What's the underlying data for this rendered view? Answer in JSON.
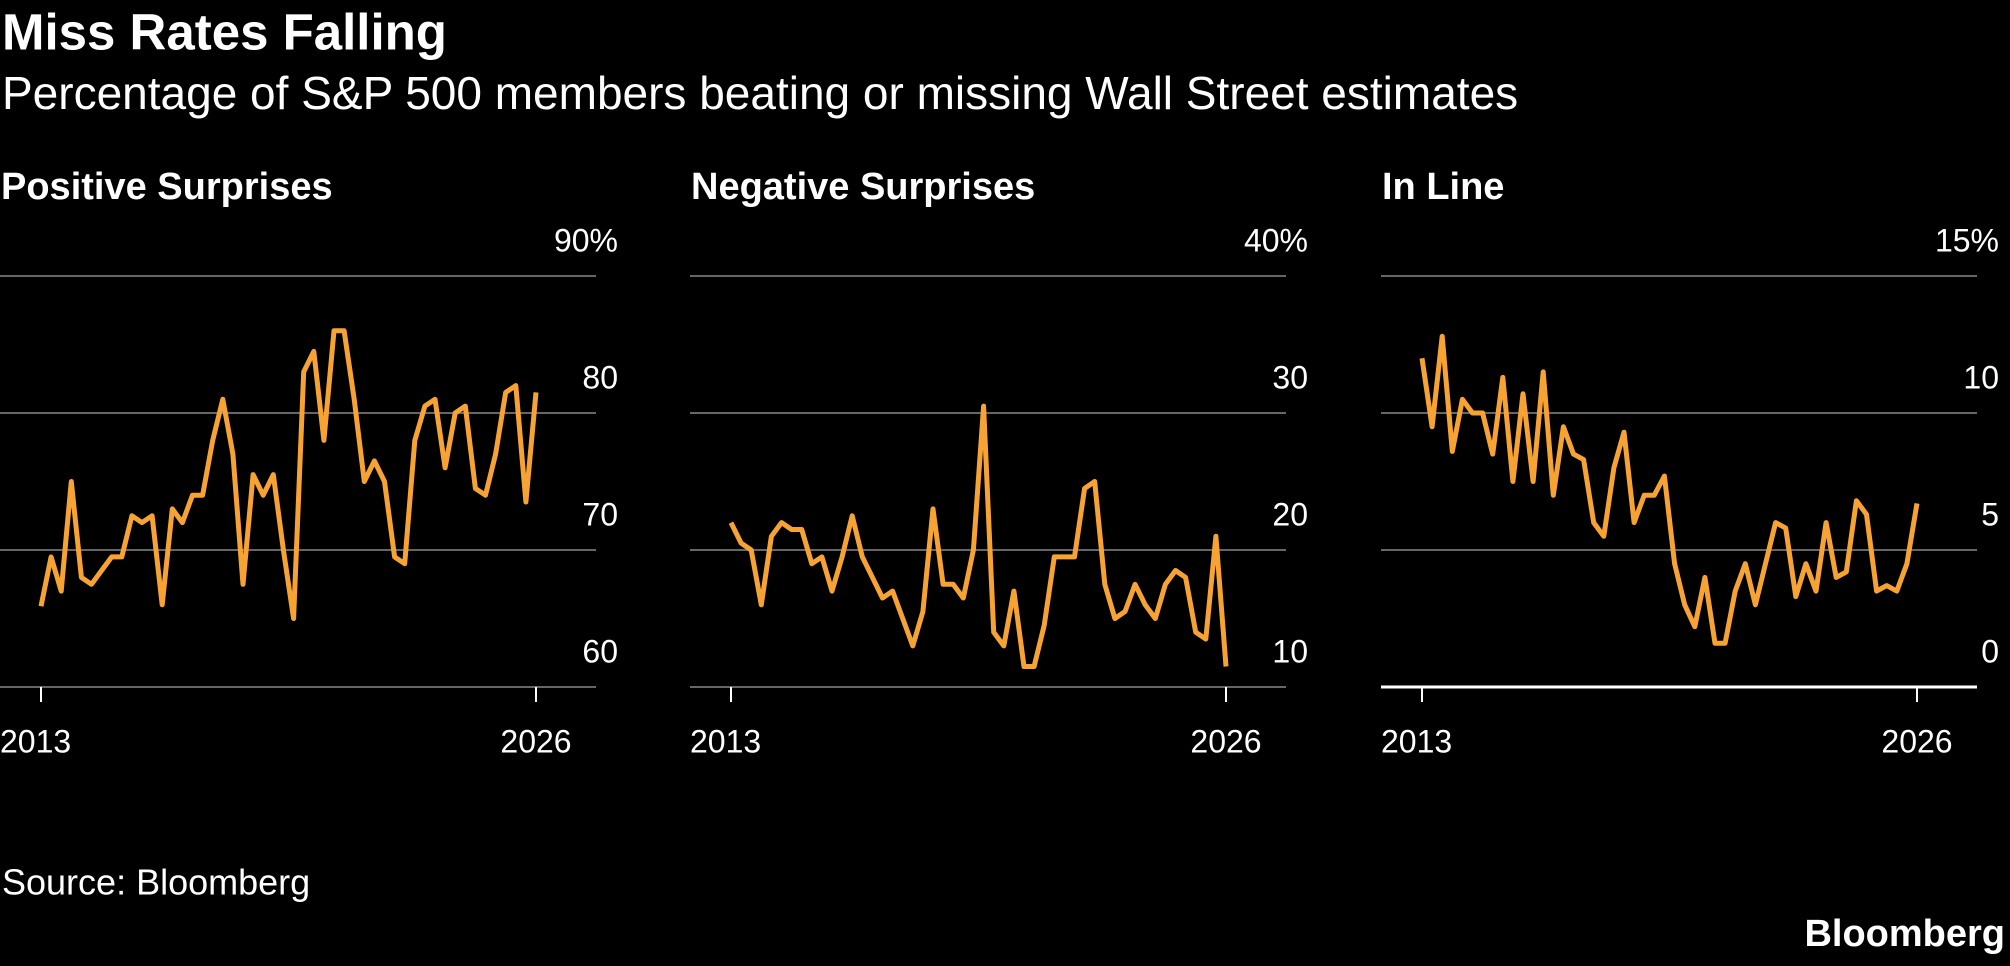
{
  "title": "Miss Rates Falling",
  "subtitle": "Percentage of S&P 500 members beating or missing Wall Street estimates",
  "source": "Source: Bloomberg",
  "brand": "Bloomberg",
  "chart_data": [
    {
      "type": "line",
      "title": "Positive Surprises",
      "categories": [
        "2013",
        null,
        null,
        null,
        null,
        null,
        null,
        null,
        null,
        null,
        null,
        null,
        null,
        null,
        null,
        null,
        null,
        null,
        null,
        null,
        null,
        null,
        null,
        null,
        null,
        null,
        null,
        null,
        null,
        null,
        null,
        null,
        null,
        null,
        null,
        null,
        null,
        null,
        null,
        null,
        null,
        null,
        null,
        null,
        null,
        null,
        null,
        null,
        null,
        "2026"
      ],
      "series": [
        {
          "color": "#f7a334",
          "values": [
            65.9,
            69.5,
            67,
            75,
            68,
            67.5,
            68.5,
            69.5,
            69.5,
            72.5,
            72,
            72.5,
            66,
            73,
            72,
            74,
            74,
            78,
            81,
            77,
            67.5,
            75.5,
            74,
            75.5,
            70,
            65,
            83,
            84.5,
            78,
            86,
            86,
            81,
            75,
            76.5,
            75,
            69.5,
            69,
            78,
            80.5,
            81,
            76,
            80,
            80.5,
            74.5,
            74,
            77,
            81.5,
            82,
            73.5,
            81.5
          ]
        }
      ],
      "ylim": [
        60,
        90
      ],
      "yticks": [
        60,
        70,
        80,
        {
          "value": 90,
          "label": "90%"
        }
      ],
      "grid": true
    },
    {
      "type": "line",
      "title": "Negative Surprises",
      "categories": [
        "2013",
        null,
        null,
        null,
        null,
        null,
        null,
        null,
        null,
        null,
        null,
        null,
        null,
        null,
        null,
        null,
        null,
        null,
        null,
        null,
        null,
        null,
        null,
        null,
        null,
        null,
        null,
        null,
        null,
        null,
        null,
        null,
        null,
        null,
        null,
        null,
        null,
        null,
        null,
        null,
        null,
        null,
        null,
        null,
        null,
        null,
        null,
        null,
        null,
        "2026"
      ],
      "series": [
        {
          "color": "#f7a334",
          "values": [
            22,
            20.5,
            20,
            16,
            21,
            22,
            21.5,
            21.5,
            19,
            19.5,
            17,
            19.5,
            22.5,
            19.5,
            18,
            16.5,
            17,
            15,
            13,
            15.5,
            23,
            17.5,
            17.5,
            16.5,
            20,
            30.5,
            14,
            13,
            17,
            11.5,
            11.5,
            14.5,
            19.5,
            19.5,
            19.5,
            24.5,
            25,
            17.5,
            15,
            15.5,
            17.5,
            16,
            15,
            17.5,
            18.5,
            18,
            14,
            13.5,
            21,
            11.5
          ]
        }
      ],
      "ylim": [
        10,
        40
      ],
      "yticks": [
        10,
        20,
        30,
        {
          "value": 40,
          "label": "40%"
        }
      ],
      "grid": true
    },
    {
      "type": "line",
      "title": "In Line",
      "categories": [
        "2013",
        null,
        null,
        null,
        null,
        null,
        null,
        null,
        null,
        null,
        null,
        null,
        null,
        null,
        null,
        null,
        null,
        null,
        null,
        null,
        null,
        null,
        null,
        null,
        null,
        null,
        null,
        null,
        null,
        null,
        null,
        null,
        null,
        null,
        null,
        null,
        null,
        null,
        null,
        null,
        null,
        null,
        null,
        null,
        null,
        null,
        null,
        null,
        null,
        "2026"
      ],
      "series": [
        {
          "color": "#f7a334",
          "values": [
            12,
            9.5,
            12.8,
            8.6,
            10.5,
            10,
            10,
            8.5,
            11.3,
            7.5,
            10.7,
            7.5,
            11.5,
            7,
            9.5,
            8.5,
            8.3,
            6,
            5.5,
            8,
            9.3,
            6,
            7,
            7,
            7.7,
            4.5,
            3,
            2.2,
            4,
            1.6,
            1.6,
            3.5,
            4.5,
            3,
            4.5,
            6,
            5.8,
            3.3,
            4.5,
            3.5,
            6,
            4,
            4.2,
            6.8,
            6.3,
            3.5,
            3.7,
            3.5,
            4.5,
            6.7
          ]
        }
      ],
      "ylim": [
        0,
        15
      ],
      "yticks": [
        0,
        5,
        10,
        {
          "value": 15,
          "label": "15%"
        }
      ],
      "grid": true
    }
  ]
}
